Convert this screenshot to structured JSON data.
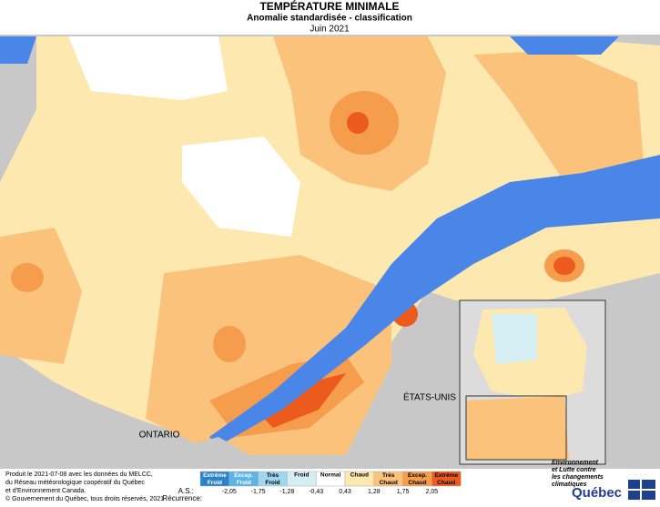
{
  "header": {
    "title": "TEMPÉRATURE MINIMALE",
    "subtitle": "Anomalie standardisée - classification",
    "date": "Juin 2021"
  },
  "map": {
    "labels": [
      "ONTARIO",
      "ÉTATS-UNIS"
    ]
  },
  "legend": {
    "classes": [
      {
        "label": "Extrême Froid",
        "color": "#2b83c6"
      },
      {
        "label": "Excep. Froid",
        "color": "#5cb4e6"
      },
      {
        "label": "Très Froid",
        "color": "#9fd8ee"
      },
      {
        "label": "Froid",
        "color": "#d4eef4"
      },
      {
        "label": "Normal",
        "color": "#ffffff"
      },
      {
        "label": "Chaud",
        "color": "#fde8b0"
      },
      {
        "label": "Très Chaud",
        "color": "#fbc27c"
      },
      {
        "label": "Excep. Chaud",
        "color": "#f59d4d"
      },
      {
        "label": "Extrême Chaud",
        "color": "#ec5a1e"
      }
    ],
    "as_label": "A.S.:",
    "thresholds": [
      "-2,05",
      "-1,75",
      "-1,28",
      "-0,43",
      "0,43",
      "1,28",
      "1,75",
      "2,05"
    ],
    "recurrence_label": "Récurrence:"
  },
  "footer": {
    "credits": [
      "Produit le 2021-07-08 avec les données du MELCC,",
      "du Réseau météorologique coopératif du Québec",
      "et d'Environnement Canada."
    ],
    "copyright": "© Gouvernement du Québec, tous droits réservés, 2021"
  },
  "brand": {
    "ministry": [
      "Environnement",
      "et Lutte contre",
      "les changements",
      "climatiques"
    ],
    "name": "Québec"
  }
}
